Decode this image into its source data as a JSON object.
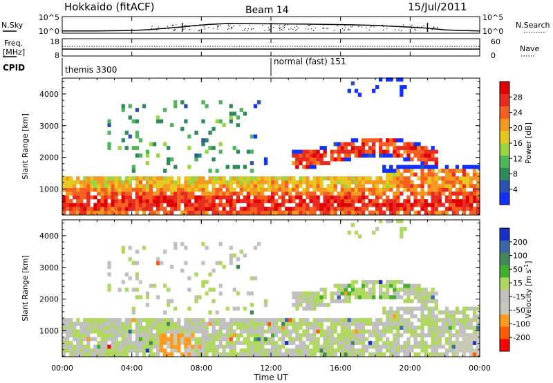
{
  "header": {
    "station": "Hokkaido (fitACF)",
    "beam": "Beam 14",
    "date": "15/Jul/2011"
  },
  "top_panels": {
    "nsky_label": "N.Sky",
    "nsearch_label": "N.Search",
    "nsky_ticks": [
      "10^5",
      "10^0"
    ],
    "nsearch_ticks": [
      "10^5",
      "10^0"
    ],
    "freq_label": "Freq.",
    "freq_unit": "[MHz]",
    "freq_ticks": [
      "18",
      "8"
    ],
    "nave_label": "Nave",
    "nave_ticks": [
      "60",
      "0"
    ],
    "cpid_label": "CPID",
    "cpid_modes": [
      "themis 3300",
      "normal (fast) 151"
    ]
  },
  "panels": {
    "power": {
      "ylabel": "Slant Range [km]",
      "colorbar_label": "Power [dB]"
    },
    "velocity": {
      "ylabel": "Slant Range [km]",
      "colorbar_label_main": "Velocity [m s",
      "colorbar_label_exp": "-1",
      "colorbar_label_end": "]"
    }
  },
  "xaxis": {
    "label": "Time UT",
    "ticks": [
      "00:00",
      "04:00",
      "08:00",
      "12:00",
      "16:00",
      "20:00",
      "00:00"
    ]
  },
  "colorbars": {
    "power": {
      "colors": [
        "#1030ff",
        "#2a52b0",
        "#2d8a5a",
        "#4cb85a",
        "#9ad640",
        "#e6c820",
        "#f59a20",
        "#f56020",
        "#e82a20",
        "#e00000"
      ],
      "ticks": [
        "4",
        "8",
        "12",
        "16",
        "20",
        "24",
        "28"
      ]
    },
    "velocity": {
      "colors": [
        "#ff0000",
        "#ff5a00",
        "#ff9a20",
        "#c8c8b8",
        "#c0c0c0",
        "#b0d860",
        "#40b030",
        "#408858",
        "#3868a8",
        "#1830c8"
      ],
      "ticks": [
        "-200",
        "-100",
        "-50",
        "-15",
        "15",
        "50",
        "100",
        "200"
      ]
    }
  },
  "chart_data": [
    {
      "type": "line",
      "title": "",
      "xlabel": "",
      "ylabel": "N.Sky",
      "xlim": [
        0,
        24
      ],
      "y_scale": "log",
      "ylim": [
        1,
        100000
      ],
      "series": [
        {
          "name": "N.Sky",
          "x": [
            0,
            2,
            4,
            5,
            6,
            6.9,
            7.5,
            8.5,
            9.5,
            10.5,
            12,
            13,
            14,
            15,
            16,
            17,
            18,
            19,
            20,
            21,
            22,
            23,
            24
          ],
          "y": [
            2,
            2,
            3,
            6,
            20,
            60,
            150,
            500,
            1000,
            900,
            800,
            700,
            600,
            500,
            400,
            300,
            200,
            100,
            50,
            20,
            5,
            3,
            2
          ]
        }
      ]
    },
    {
      "type": "line",
      "title": "",
      "xlabel": "",
      "ylabel": "Freq. [MHz]",
      "xlim": [
        0,
        24
      ],
      "ylim": [
        8,
        18
      ],
      "series": [
        {
          "name": "Freq.",
          "x": [
            0,
            12,
            24
          ],
          "y": [
            10.5,
            10.5,
            10.5
          ]
        }
      ]
    },
    {
      "type": "heatmap",
      "title": "",
      "xlabel": "",
      "ylabel": "Slant Range [km]",
      "xlim": [
        0,
        24
      ],
      "ylim": [
        180,
        4500
      ],
      "yticks": [
        1000,
        2000,
        3000,
        4000
      ],
      "quantity": "Power [dB]",
      "colorbar_range": [
        0,
        32
      ]
    },
    {
      "type": "heatmap",
      "title": "",
      "xlabel": "Time UT",
      "ylabel": "Slant Range [km]",
      "xlim": [
        0,
        24
      ],
      "ylim": [
        180,
        4500
      ],
      "yticks": [
        1000,
        2000,
        3000,
        4000
      ],
      "quantity": "Velocity [m s-1]",
      "colorbar_range": [
        -250,
        250
      ]
    }
  ]
}
